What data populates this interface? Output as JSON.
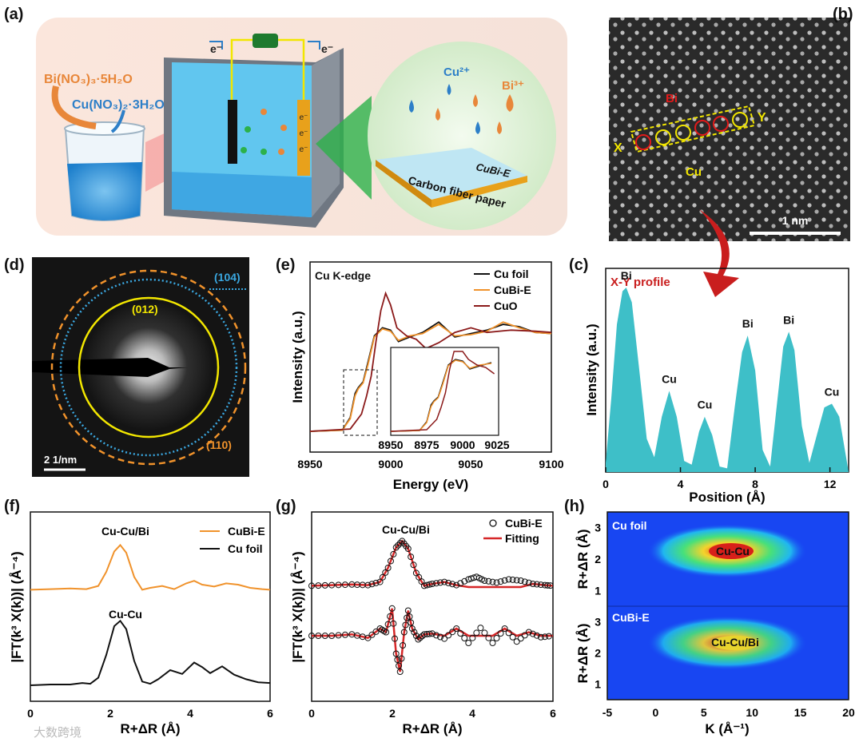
{
  "panel_labels": {
    "a": "(a)",
    "b": "(b)",
    "c": "(c)",
    "d": "(d)",
    "e": "(e)",
    "f": "(f)",
    "g": "(g)",
    "h": "(h)"
  },
  "panel_a": {
    "precursor_bi": "Bi(NO₃)₃·5H₂O",
    "precursor_cu": "Cu(NO₃)₂·3H₂O",
    "electron_left": "e⁻",
    "electron_right": "e⁻",
    "electrode_e": [
      "e⁻",
      "e⁻",
      "e⁻"
    ],
    "ion_cu": "Cu²⁺",
    "ion_bi": "Bi³⁺",
    "product": "CuBi-E",
    "substrate": "Carbon fiber paper"
  },
  "panel_b": {
    "bi_label": "Bi",
    "cu_label": "Cu",
    "x_label": "X",
    "y_label": "Y",
    "scale_bar": "1 nm"
  },
  "panel_d": {
    "ring_104": "(104)",
    "ring_012": "(012)",
    "ring_110": "(110)",
    "scale_bar": "2 1/nm"
  },
  "colors": {
    "teal": "#3ebfc8",
    "orange": "#f0922b",
    "black": "#111111",
    "cuo": "#8b1a1a",
    "fit": "#d62728",
    "yellow": "#ffff33",
    "blue": "#1f9bd6"
  },
  "chart_data": [
    {
      "id": "c",
      "type": "area",
      "title": "X-Y profile",
      "xlabel": "Position (Å)",
      "ylabel": "Intensity (a.u.)",
      "xlim": [
        0,
        13
      ],
      "xticks": [
        "0",
        "4",
        "8",
        "12"
      ],
      "peaks": [
        {
          "label": "Bi",
          "x": 1.1
        },
        {
          "label": "Cu",
          "x": 3.4
        },
        {
          "label": "Cu",
          "x": 5.3
        },
        {
          "label": "Bi",
          "x": 7.6
        },
        {
          "label": "Bi",
          "x": 9.8
        },
        {
          "label": "Cu",
          "x": 12.1
        }
      ],
      "x": [
        0,
        0.3,
        0.6,
        0.9,
        1.1,
        1.4,
        1.8,
        2.2,
        2.6,
        3.0,
        3.4,
        3.8,
        4.2,
        4.6,
        5.0,
        5.3,
        5.7,
        6.1,
        6.5,
        6.9,
        7.3,
        7.6,
        8.0,
        8.4,
        8.8,
        9.2,
        9.5,
        9.8,
        10.1,
        10.5,
        10.9,
        11.3,
        11.7,
        12.1,
        12.5,
        12.8,
        13.0
      ],
      "y": [
        0.05,
        0.4,
        0.8,
        0.98,
        1.0,
        0.92,
        0.55,
        0.18,
        0.08,
        0.3,
        0.44,
        0.3,
        0.06,
        0.04,
        0.22,
        0.3,
        0.2,
        0.03,
        0.02,
        0.35,
        0.65,
        0.74,
        0.55,
        0.12,
        0.03,
        0.4,
        0.68,
        0.76,
        0.66,
        0.25,
        0.05,
        0.2,
        0.35,
        0.37,
        0.3,
        0.12,
        0.0
      ]
    },
    {
      "id": "e",
      "type": "line",
      "title": "Cu K-edge",
      "xlabel": "Energy (eV)",
      "ylabel": "Intensity (a.u.)",
      "xlim": [
        8950,
        9100
      ],
      "xticks": [
        "8950",
        "9000",
        "9050",
        "9100"
      ],
      "legend": [
        "Cu foil",
        "CuBi-E",
        "CuO"
      ],
      "series": [
        {
          "name": "Cu foil",
          "color": "#111111",
          "x": [
            8950,
            8970,
            8975,
            8978,
            8980,
            8983,
            8986,
            8990,
            8995,
            9000,
            9005,
            9012,
            9020,
            9030,
            9040,
            9050,
            9060,
            9070,
            9080,
            9090,
            9100
          ],
          "y": [
            0.0,
            0.01,
            0.12,
            0.33,
            0.38,
            0.43,
            0.6,
            0.83,
            0.9,
            0.88,
            0.78,
            0.82,
            0.86,
            0.95,
            0.82,
            0.85,
            0.88,
            0.93,
            0.91,
            0.86,
            0.85
          ]
        },
        {
          "name": "CuBi-E",
          "color": "#f0922b",
          "x": [
            8950,
            8970,
            8975,
            8978,
            8980,
            8983,
            8986,
            8990,
            8995,
            9000,
            9005,
            9012,
            9020,
            9030,
            9040,
            9050,
            9060,
            9070,
            9080,
            9090,
            9100
          ],
          "y": [
            0.0,
            0.01,
            0.11,
            0.31,
            0.37,
            0.42,
            0.58,
            0.82,
            0.89,
            0.87,
            0.79,
            0.83,
            0.85,
            0.93,
            0.83,
            0.84,
            0.87,
            0.95,
            0.9,
            0.86,
            0.85
          ]
        },
        {
          "name": "CuO",
          "color": "#8b1a1a",
          "x": [
            8950,
            8975,
            8982,
            8985,
            8988,
            8991,
            8994,
            8997,
            9000,
            9004,
            9010,
            9016,
            9022,
            9030,
            9040,
            9050,
            9060,
            9075,
            9090,
            9100
          ],
          "y": [
            0.0,
            0.02,
            0.15,
            0.3,
            0.48,
            0.78,
            1.05,
            1.2,
            1.1,
            0.9,
            0.83,
            0.8,
            0.72,
            0.77,
            0.86,
            0.9,
            0.86,
            0.88,
            0.87,
            0.86
          ]
        }
      ],
      "inset": {
        "xticks": [
          "8950",
          "8975",
          "9000",
          "9025"
        ]
      }
    },
    {
      "id": "f",
      "type": "line",
      "xlabel": "R+ΔR (Å)",
      "ylabel": "|FT(k³ X(k))| (Å⁻⁴)",
      "xlim": [
        0,
        6
      ],
      "xticks": [
        "0",
        "2",
        "4",
        "6"
      ],
      "legend": [
        "CuBi-E",
        "Cu foil"
      ],
      "annotations": [
        "Cu-Cu/Bi",
        "Cu-Cu"
      ],
      "series": [
        {
          "name": "CuBi-E",
          "color": "#f0922b",
          "x": [
            0,
            0.5,
            1.0,
            1.4,
            1.7,
            1.9,
            2.1,
            2.25,
            2.4,
            2.6,
            2.8,
            3.0,
            3.3,
            3.6,
            3.9,
            4.1,
            4.3,
            4.6,
            4.9,
            5.2,
            5.5,
            5.8,
            6.0
          ],
          "y": [
            0.02,
            0.03,
            0.04,
            0.03,
            0.08,
            0.3,
            0.62,
            0.72,
            0.6,
            0.22,
            0.02,
            0.05,
            0.08,
            0.03,
            0.12,
            0.16,
            0.1,
            0.07,
            0.12,
            0.1,
            0.05,
            0.03,
            0.02
          ]
        },
        {
          "name": "Cu foil",
          "color": "#111111",
          "x": [
            0,
            0.5,
            1.0,
            1.3,
            1.5,
            1.7,
            1.9,
            2.1,
            2.25,
            2.4,
            2.6,
            2.8,
            3.0,
            3.2,
            3.5,
            3.8,
            4.1,
            4.3,
            4.5,
            4.8,
            5.1,
            5.4,
            5.7,
            6.0
          ],
          "y": [
            0.0,
            0.01,
            0.01,
            0.03,
            0.02,
            0.1,
            0.4,
            0.78,
            0.85,
            0.74,
            0.32,
            0.05,
            0.02,
            0.08,
            0.2,
            0.15,
            0.3,
            0.24,
            0.16,
            0.25,
            0.14,
            0.08,
            0.04,
            0.03
          ]
        }
      ]
    },
    {
      "id": "g",
      "type": "line",
      "xlabel": "R+ΔR (Å)",
      "ylabel": "|FT(k³ X(k))| (Å⁻⁴)",
      "xlim": [
        0,
        6
      ],
      "xticks": [
        "0",
        "2",
        "4",
        "6"
      ],
      "legend": [
        "CuBi-E",
        "Fitting"
      ],
      "annotations": [
        "Cu-Cu/Bi"
      ],
      "series": [
        {
          "name": "CuBi-E magnitude",
          "color": "#111111",
          "x": [
            0,
            0.5,
            1.0,
            1.4,
            1.7,
            1.9,
            2.1,
            2.25,
            2.4,
            2.6,
            2.8,
            3.0,
            3.3,
            3.6,
            3.9,
            4.1,
            4.3,
            4.6,
            4.9,
            5.2,
            5.5,
            5.8,
            6.0
          ],
          "y": [
            0.02,
            0.03,
            0.04,
            0.03,
            0.08,
            0.3,
            0.62,
            0.72,
            0.6,
            0.22,
            0.02,
            0.05,
            0.08,
            0.03,
            0.12,
            0.16,
            0.1,
            0.07,
            0.12,
            0.1,
            0.05,
            0.03,
            0.02
          ]
        },
        {
          "name": "CuBi-E imaginary",
          "color": "#111111",
          "x": [
            0,
            0.5,
            1.0,
            1.4,
            1.7,
            1.85,
            2.0,
            2.1,
            2.2,
            2.3,
            2.4,
            2.5,
            2.65,
            2.8,
            3.0,
            3.3,
            3.6,
            3.9,
            4.2,
            4.5,
            4.8,
            5.1,
            5.4,
            5.7,
            6.0
          ],
          "y": [
            0,
            0,
            0.02,
            -0.03,
            0.1,
            0.05,
            0.38,
            -0.25,
            -0.5,
            0.05,
            0.35,
            0.1,
            -0.05,
            0.02,
            0.03,
            -0.04,
            0.1,
            -0.1,
            0.11,
            -0.1,
            0.1,
            -0.08,
            0.05,
            -0.02,
            0
          ]
        }
      ]
    },
    {
      "id": "h",
      "type": "heatmap",
      "xlabel": "K (Å⁻¹)",
      "ylabel": "R+ΔR (Å)",
      "xlim": [
        -5,
        20
      ],
      "ylim": [
        0.5,
        3.5
      ],
      "xticks": [
        "-5",
        "0",
        "5",
        "10",
        "15",
        "20"
      ],
      "yticks": [
        "1",
        "2",
        "3"
      ],
      "subplots": [
        "Cu foil",
        "CuBi-E"
      ],
      "peak_labels": [
        "Cu-Cu",
        "Cu-Cu/Bi"
      ]
    }
  ],
  "watermark": "大数跨境"
}
